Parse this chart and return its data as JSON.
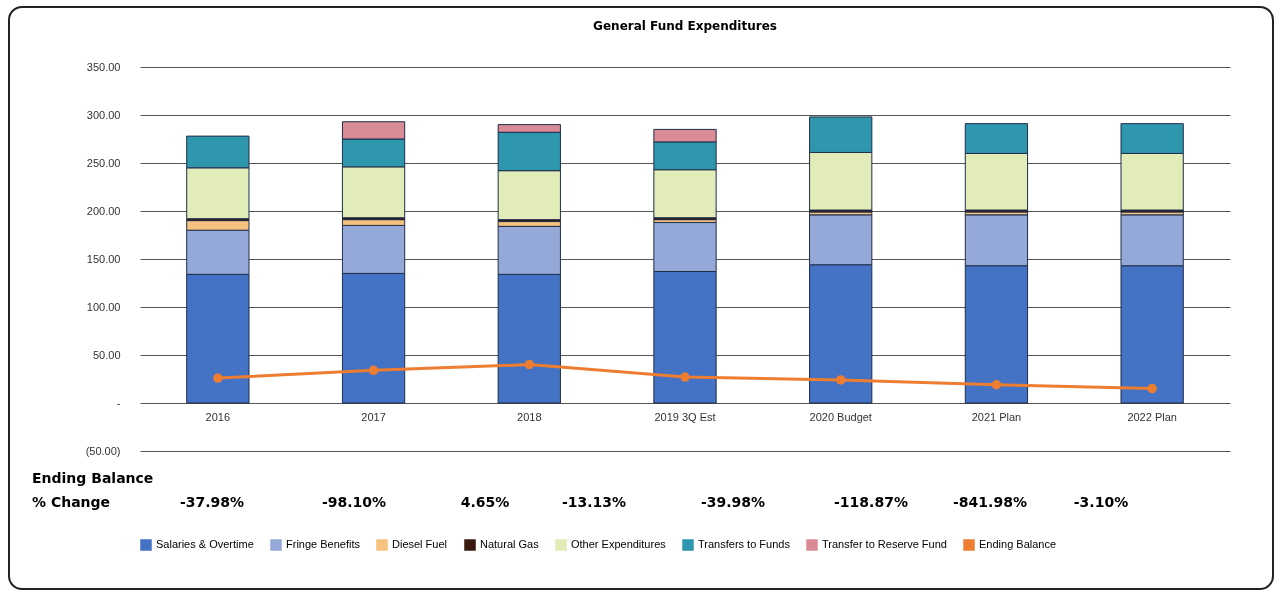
{
  "chart_data": {
    "type": "bar",
    "title": "General Fund Expenditures",
    "stacked": true,
    "categories": [
      "2016",
      "2017",
      "2018",
      "2019 3Q Est",
      "2020 Budget",
      "2021 Plan",
      "2022 Plan"
    ],
    "series": [
      {
        "name": "Salaries & Overtime",
        "color": "#4472c4",
        "values": [
          134,
          135,
          134,
          137,
          144,
          143,
          143
        ]
      },
      {
        "name": "Fringe Benefits",
        "color": "#95a9d8",
        "values": [
          46,
          50,
          50,
          51,
          52,
          53,
          53
        ]
      },
      {
        "name": "Diesel Fuel",
        "color": "#f6c27f",
        "values": [
          10,
          6,
          5,
          3,
          3,
          3,
          3
        ]
      },
      {
        "name": "Natural Gas",
        "color": "#3a1a10",
        "values": [
          2,
          2,
          2,
          2,
          2,
          2,
          2
        ]
      },
      {
        "name": "Other Expenditures",
        "color": "#e2ecb8",
        "values": [
          53,
          53,
          51,
          50,
          60,
          59,
          59
        ]
      },
      {
        "name": "Transfers to Funds",
        "color": "#2f97ad",
        "values": [
          33,
          29,
          40,
          29,
          37,
          31,
          31
        ]
      },
      {
        "name": "Transfer to Reserve Fund",
        "color": "#d98c96",
        "values": [
          null,
          18,
          8,
          13,
          null,
          null,
          null
        ]
      },
      {
        "name": "Ending Balance",
        "type": "line",
        "color": "#ed7d31",
        "values": [
          26,
          34,
          40,
          27,
          24,
          19,
          15
        ]
      }
    ],
    "ylim": [
      -50,
      350
    ],
    "yticks": [
      {
        "value": -50,
        "label": "(50.00)"
      },
      {
        "value": 0,
        "label": "-"
      },
      {
        "value": 50,
        "label": "50.00"
      },
      {
        "value": 100,
        "label": "100.00"
      },
      {
        "value": 150,
        "label": "150.00"
      },
      {
        "value": 200,
        "label": "200.00"
      },
      {
        "value": 250,
        "label": "250.00"
      },
      {
        "value": 300,
        "label": "300.00"
      },
      {
        "value": 350,
        "label": "350.00"
      }
    ],
    "grid": "y",
    "legend": "bottom",
    "marker": "circle",
    "annotations": [
      "Ending Balance",
      "% Change",
      "-37.98%",
      "-98.10%",
      "4.65%",
      "-13.13%",
      "-39.98%",
      "-118.87%",
      "-841.98%",
      "-3.10%"
    ]
  }
}
